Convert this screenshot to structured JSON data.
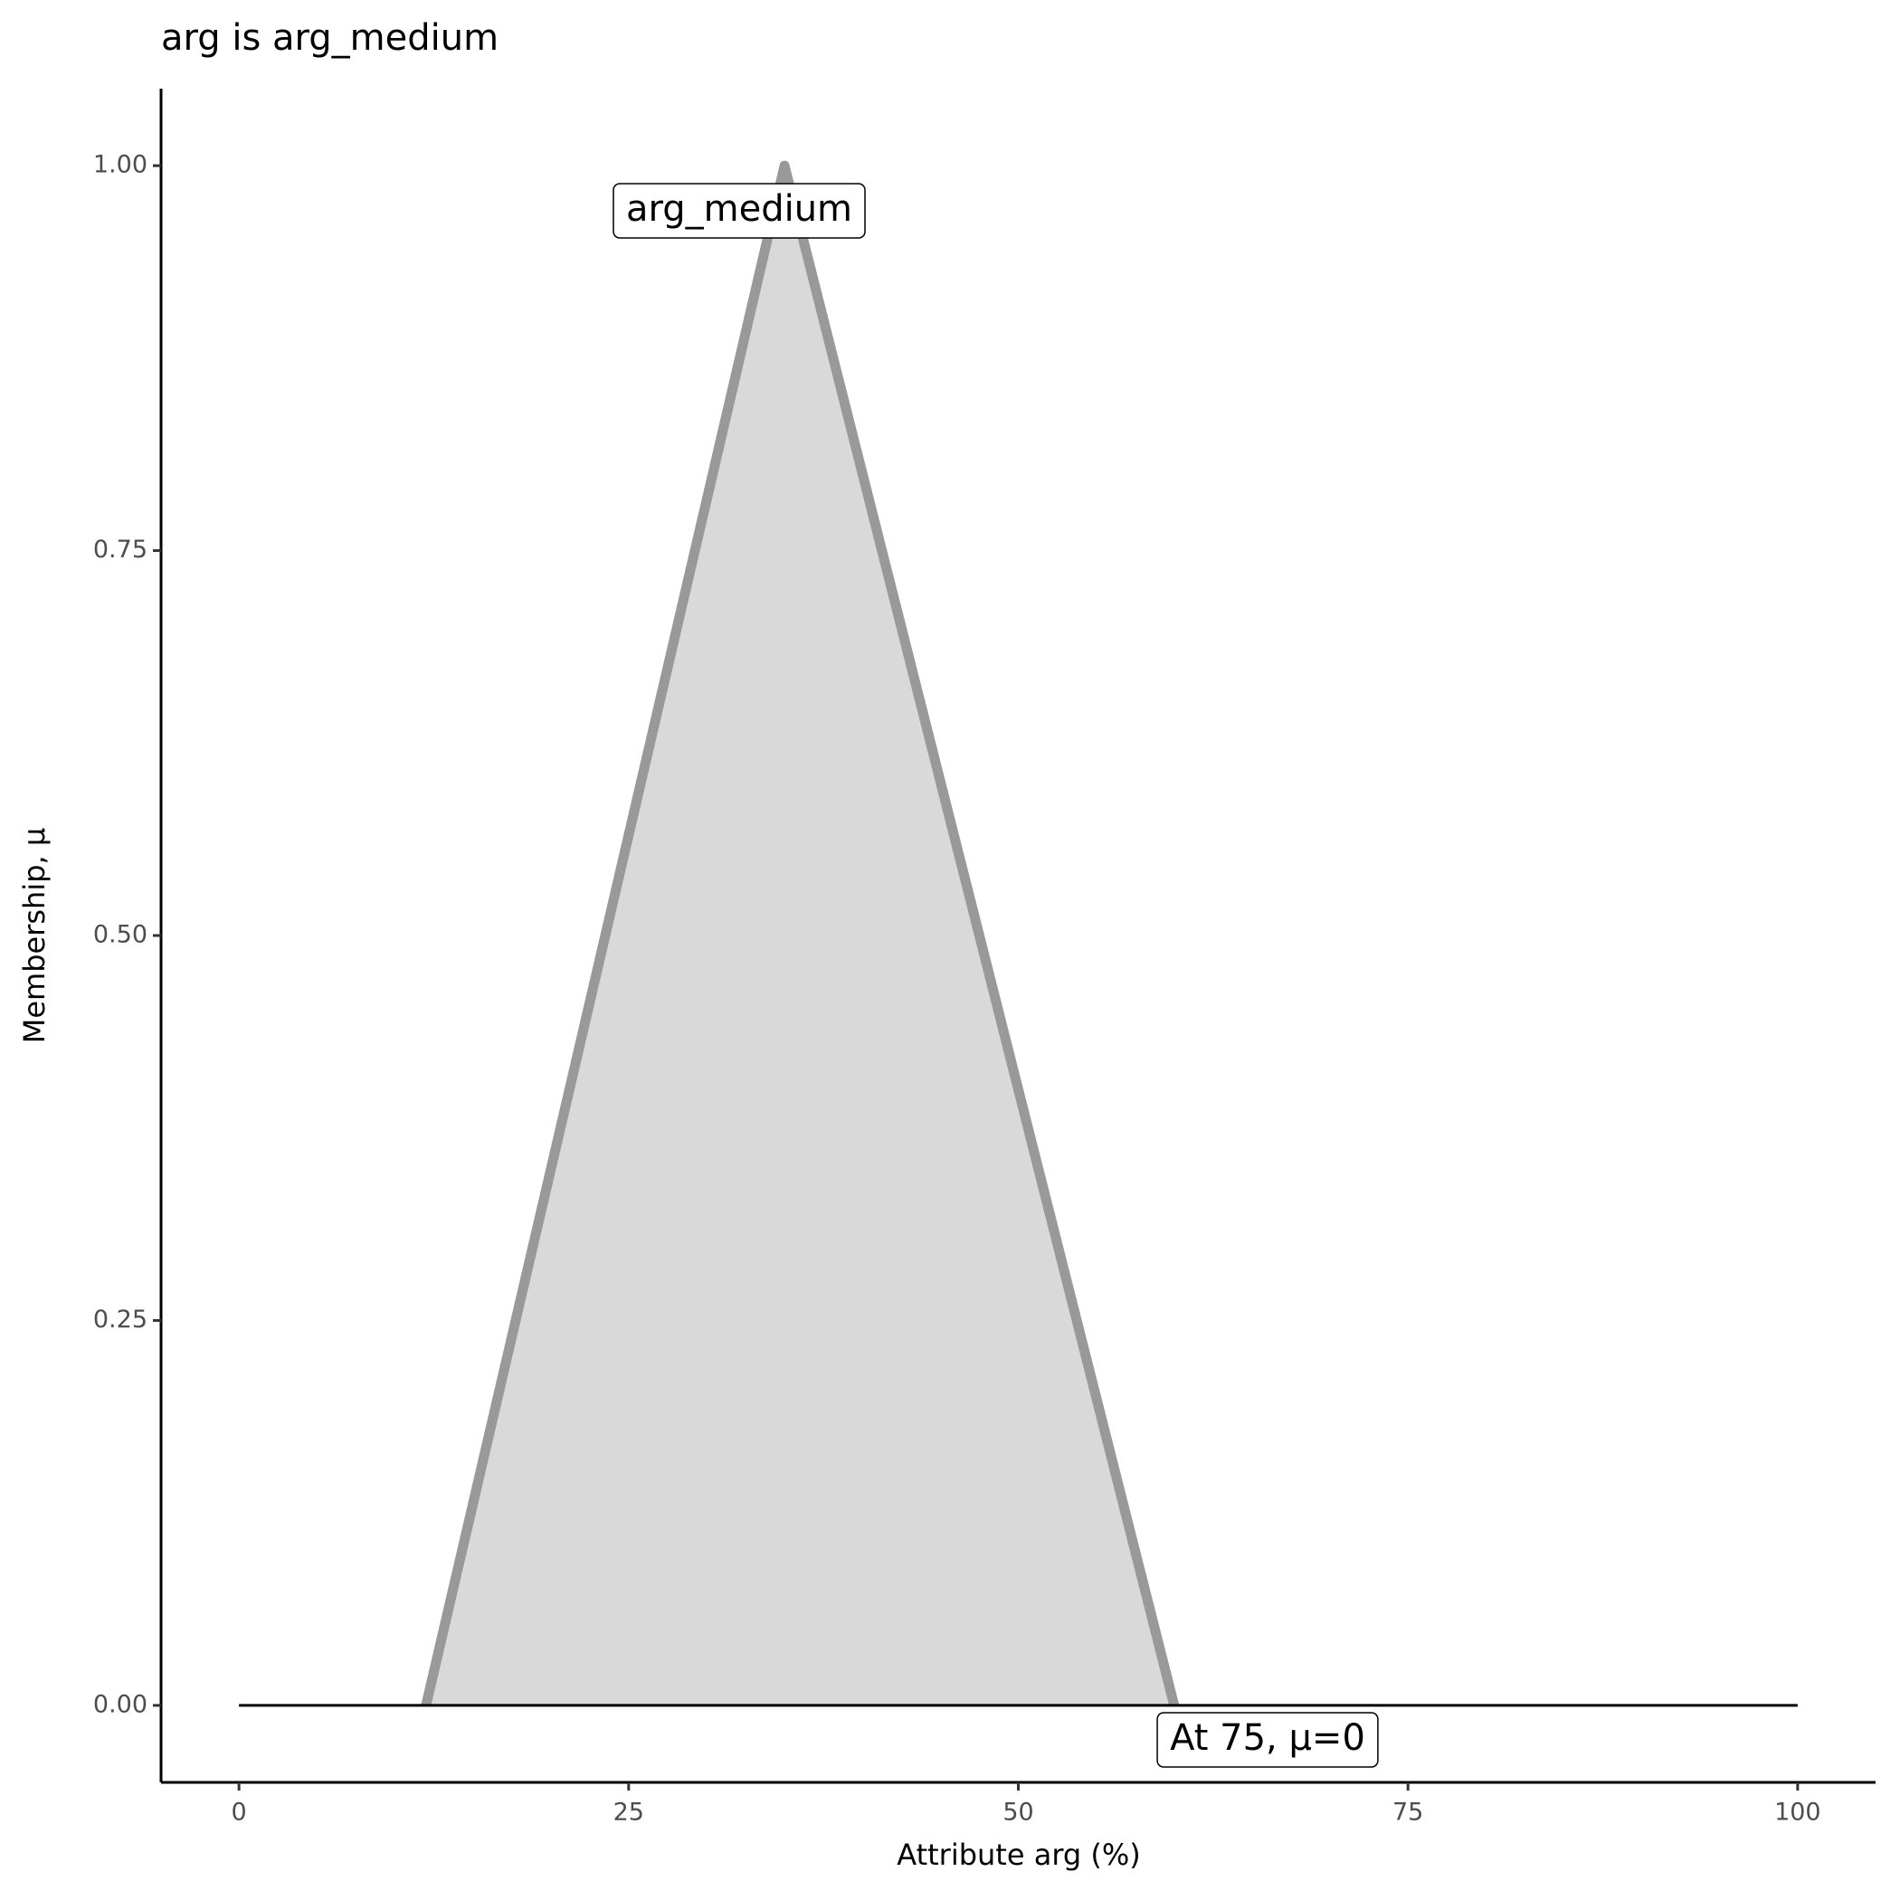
{
  "chart_data": {
    "type": "area",
    "title": "arg is arg_medium",
    "x_label": "Attribute arg (%)",
    "y_label": "Membership, μ",
    "x": [
      12,
      35,
      60
    ],
    "values": [
      0,
      1,
      0
    ],
    "line_color": "#999999",
    "fill_color": "#d9d9d9",
    "baseline": {
      "x": [
        0,
        100
      ],
      "values": [
        0,
        0
      ]
    },
    "annotations": [
      "arg_medium",
      "At 75, μ=0"
    ],
    "xlim": [
      -5,
      105
    ],
    "xticks": [
      0,
      25,
      50,
      75,
      100
    ],
    "ylim": [
      -0.05,
      1.05
    ],
    "yticks": [
      {
        "value": 0,
        "label": "0.00"
      },
      {
        "value": 0.25,
        "label": "0.25"
      },
      {
        "value": 0.5,
        "label": "0.50"
      },
      {
        "value": 0.75,
        "label": "0.75"
      },
      {
        "value": 1,
        "label": "1.00"
      }
    ],
    "grid": false
  }
}
